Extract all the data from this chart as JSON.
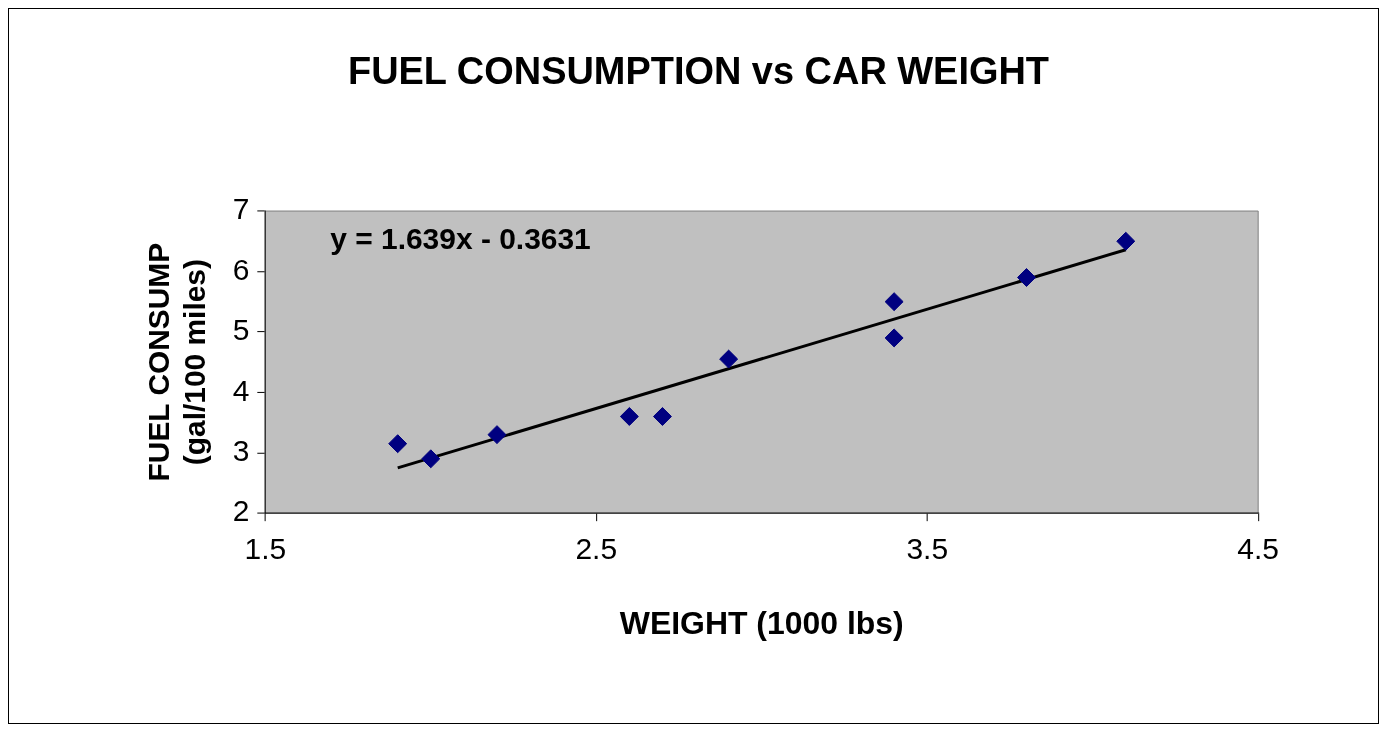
{
  "chart_data": {
    "type": "scatter",
    "title": "FUEL CONSUMPTION vs CAR WEIGHT",
    "xlabel": "WEIGHT (1000 lbs)",
    "ylabel": "FUEL CONSUMP\n(gal/100 miles)",
    "annotations": [
      "y = 1.639x - 0.3631"
    ],
    "xlim": [
      1.5,
      4.5
    ],
    "xticks": [
      1.5,
      2.5,
      3.5,
      4.5
    ],
    "ylim": [
      2,
      7
    ],
    "yticks": [
      2,
      3,
      4,
      5,
      6,
      7
    ],
    "series": [
      {
        "type": "scatter",
        "color": "#000080",
        "marker": "diamond",
        "x": [
          1.9,
          2.0,
          2.2,
          2.6,
          2.7,
          2.9,
          3.4,
          3.4,
          3.8,
          4.1
        ],
        "values": [
          3.15,
          2.9,
          3.3,
          3.6,
          3.6,
          4.55,
          5.5,
          4.9,
          5.9,
          6.5
        ]
      },
      {
        "type": "line",
        "color": "#000000",
        "marker": "none",
        "x": [
          1.9,
          4.1
        ],
        "values": [
          2.75,
          6.36
        ]
      }
    ]
  }
}
